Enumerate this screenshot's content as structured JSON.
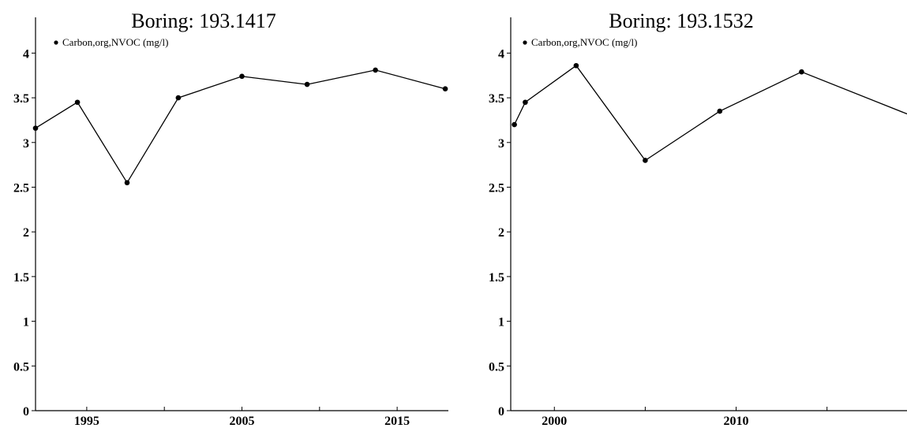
{
  "chart_data": [
    {
      "type": "line",
      "title": "Boring: 193.1417",
      "xlabel": "",
      "ylabel": "",
      "ylim": [
        0,
        4.4
      ],
      "xlim": [
        1991.7,
        2018.3
      ],
      "y_ticks": [
        {
          "value": 0,
          "label": "0"
        },
        {
          "value": 0.5,
          "label": "0.5"
        },
        {
          "value": 1,
          "label": "1"
        },
        {
          "value": 1.5,
          "label": "1.5"
        },
        {
          "value": 2,
          "label": "2"
        },
        {
          "value": 2.5,
          "label": "2.5"
        },
        {
          "value": 3,
          "label": "3"
        },
        {
          "value": 3.5,
          "label": "3.5"
        },
        {
          "value": 4,
          "label": "4"
        }
      ],
      "x_ticks": [
        1995,
        2000,
        2005,
        2010,
        2015
      ],
      "x_tick_labels": [
        {
          "value": 1995,
          "label": "1995"
        },
        {
          "value": 2005,
          "label": "2005"
        },
        {
          "value": 2015,
          "label": "2015"
        }
      ],
      "grid": false,
      "legend": {
        "placement": "top-left",
        "entries": [
          "Carbon,org,NVOC (mg/l)"
        ]
      },
      "series": [
        {
          "name": "Carbon,org,NVOC (mg/l)",
          "color": "#000000",
          "x": [
            1991.7,
            1994.4,
            1997.6,
            2000.9,
            2005.0,
            2009.2,
            2013.6,
            2018.1
          ],
          "y": [
            3.16,
            3.45,
            2.55,
            3.5,
            3.74,
            3.65,
            3.81,
            3.6
          ]
        }
      ]
    },
    {
      "type": "line",
      "title": "Boring: 193.1532",
      "xlabel": "",
      "ylabel": "",
      "ylim": [
        0,
        4.4
      ],
      "xlim": [
        1997.6,
        2019.4
      ],
      "y_ticks": [
        {
          "value": 0,
          "label": "0"
        },
        {
          "value": 0.5,
          "label": "0.5"
        },
        {
          "value": 1,
          "label": "1"
        },
        {
          "value": 1.5,
          "label": "1.5"
        },
        {
          "value": 2,
          "label": "2"
        },
        {
          "value": 2.5,
          "label": "2.5"
        },
        {
          "value": 3,
          "label": "3"
        },
        {
          "value": 3.5,
          "label": "3.5"
        },
        {
          "value": 4,
          "label": "4"
        }
      ],
      "x_ticks": [
        2000,
        2005,
        2010,
        2015
      ],
      "x_tick_labels": [
        {
          "value": 2000,
          "label": "2000"
        },
        {
          "value": 2010,
          "label": "2010"
        }
      ],
      "grid": false,
      "legend": {
        "placement": "top-left",
        "entries": [
          "Carbon,org,NVOC (mg/l)"
        ]
      },
      "series": [
        {
          "name": "Carbon,org,NVOC (mg/l)",
          "color": "#000000",
          "x": [
            1997.8,
            1998.4,
            2001.2,
            2005.0,
            2009.1,
            2013.6,
            2019.4
          ],
          "y": [
            3.2,
            3.45,
            3.86,
            2.8,
            3.35,
            3.79,
            3.32
          ],
          "point_markers": [
            true,
            true,
            true,
            true,
            true,
            true,
            false
          ]
        }
      ]
    }
  ]
}
